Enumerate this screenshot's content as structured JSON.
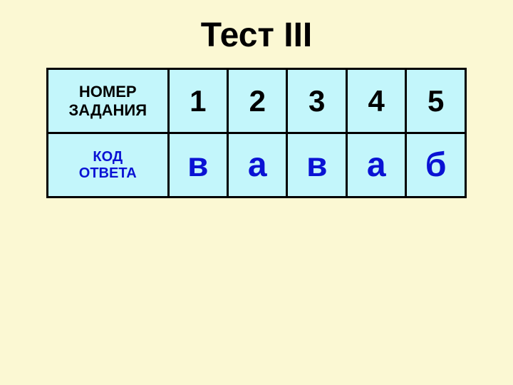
{
  "title": "Тест  III",
  "table": {
    "row1_label_line1": "НОМЕР",
    "row1_label_line2": "ЗАДАНИЯ",
    "row2_label_line1": "КОД",
    "row2_label_line2": "ОТВЕТА",
    "numbers": [
      "1",
      "2",
      "3",
      "4",
      "5"
    ],
    "answers": [
      "в",
      "а",
      "в",
      "а",
      "б"
    ],
    "cell_background": "#c3f6fb",
    "page_background": "#fbf8d3",
    "border_color": "#000000",
    "number_color": "#000000",
    "answer_color": "#0a12d4",
    "title_fontsize": 48,
    "label_fontsize": 22,
    "number_fontsize": 42,
    "answer_fontsize": 48
  }
}
